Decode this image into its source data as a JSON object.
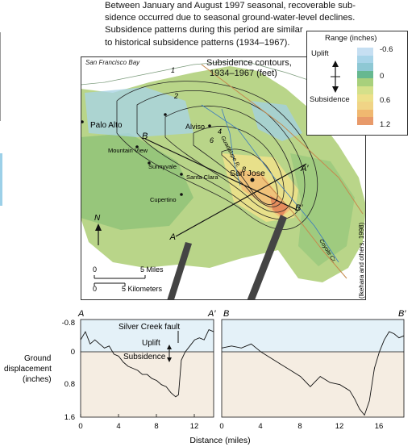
{
  "caption": [
    "Between January and August 1997 seasonal, recoverable sub-",
    "sidence occurred due to seasonal ground-water-level declines.",
    "Subsidence patterns during this period are similar",
    "to historical subsidence patterns (1934–1967)."
  ],
  "map": {
    "bay_label": "San Francisco Bay",
    "contour_title_1": "Subsidence contours,",
    "contour_title_2": "1934–1967 (feet)",
    "contour_values": [
      "1",
      "2",
      "4",
      "6",
      "8"
    ],
    "places": [
      "Palo Alto",
      "Alviso",
      "Mountain View",
      "Sunnyvale",
      "Santa Clara",
      "San Jose",
      "Cupertino"
    ],
    "streams": [
      "Guadalupe R.",
      "Coyote Cr."
    ],
    "section_points": [
      "A",
      "A′",
      "B",
      "B′"
    ],
    "north": "N",
    "scale_miles_0": "0",
    "scale_miles_5": "5 Miles",
    "scale_km_0": "0",
    "scale_km_5": "5 Kilometers",
    "credit": "(Ikehara and others, 1998)"
  },
  "legend": {
    "title": "Range (inches)",
    "uplift_label": "Uplift",
    "subsidence_label": "Subsidence",
    "ticks": [
      "-0.6",
      "0",
      "0.6",
      "1.2"
    ],
    "colors": [
      "#c6dff2",
      "#a8d4e8",
      "#8ec8d4",
      "#66b890",
      "#a8d07c",
      "#d4e08a",
      "#ece08a",
      "#f0d486",
      "#f0b870",
      "#e89a6a"
    ]
  },
  "profiles": {
    "ylabel_1": "Ground",
    "ylabel_2": "displacement",
    "ylabel_3": "(inches)",
    "xlabel": "Distance (miles)",
    "yticks": [
      "-0.8",
      "0",
      "0.8",
      "1.6"
    ],
    "a": {
      "start": "A",
      "end": "A′",
      "xticks": [
        "0",
        "4",
        "8",
        "12"
      ],
      "fault_label": "Silver Creek fault",
      "uplift_label": "Uplift",
      "subsidence_label": "Subsidence"
    },
    "b": {
      "start": "B",
      "end": "B′",
      "xticks": [
        "0",
        "4",
        "8",
        "12",
        "16"
      ]
    }
  },
  "chart_data": [
    {
      "type": "line",
      "title": "",
      "series": [
        {
          "name": "A–A′",
          "x": [
            0,
            0.5,
            1,
            1.5,
            2,
            2.5,
            3,
            3.5,
            4,
            4.5,
            5,
            5.5,
            6,
            6.5,
            7,
            7.5,
            8,
            8.5,
            9,
            9.5,
            10,
            10.3,
            10.6,
            11,
            11.5,
            12,
            12.5,
            13,
            13.5,
            14
          ],
          "y": [
            -0.3,
            -0.5,
            -0.2,
            -0.3,
            -0.2,
            -0.1,
            -0.15,
            0.05,
            0.1,
            0.25,
            0.35,
            0.4,
            0.45,
            0.55,
            0.55,
            0.65,
            0.7,
            0.8,
            0.85,
            1.0,
            1.1,
            1.05,
            0.2,
            0.0,
            -0.15,
            -0.3,
            -0.35,
            -0.3,
            -0.55,
            -0.5
          ]
        }
      ],
      "xlim": [
        0,
        14
      ],
      "ylim": [
        -0.8,
        1.6
      ]
    },
    {
      "type": "line",
      "title": "",
      "series": [
        {
          "name": "B–B′",
          "x": [
            0,
            1,
            2,
            3,
            4,
            5,
            6,
            7,
            8,
            9,
            10,
            11,
            12,
            13,
            13.5,
            14,
            14.5,
            15,
            15.5,
            16,
            16.5,
            17,
            17.5,
            18,
            18.5
          ],
          "y": [
            -0.1,
            -0.15,
            -0.1,
            -0.2,
            0.0,
            0.15,
            0.3,
            0.45,
            0.6,
            0.85,
            0.6,
            0.75,
            0.8,
            0.95,
            1.15,
            1.4,
            1.55,
            1.2,
            0.4,
            0.0,
            -0.3,
            -0.5,
            -0.45,
            -0.35,
            -0.4
          ]
        }
      ],
      "xlim": [
        0,
        18.5
      ],
      "ylim": [
        -0.8,
        1.6
      ]
    }
  ]
}
